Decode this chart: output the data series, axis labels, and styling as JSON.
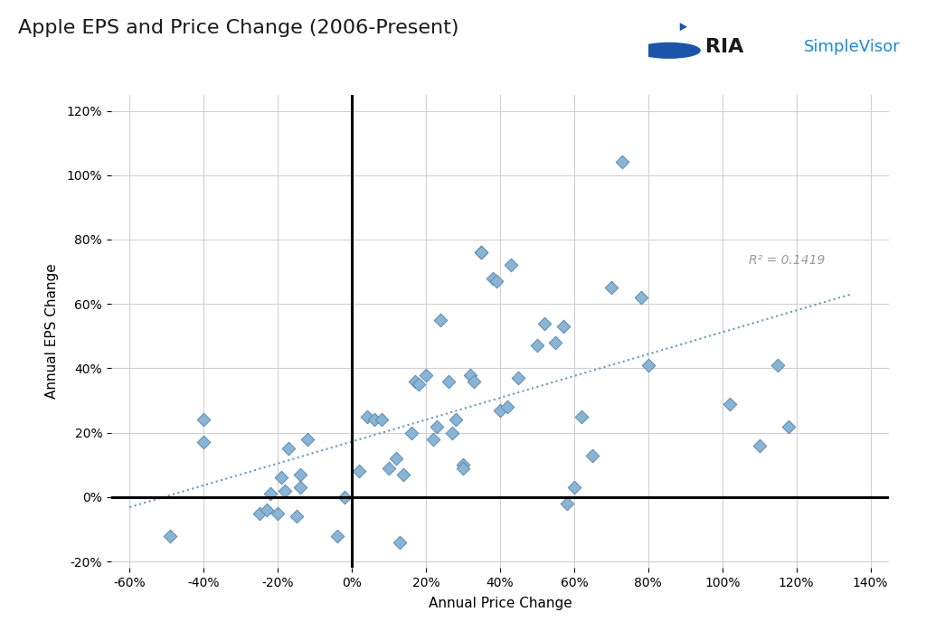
{
  "title": "Apple EPS and Price Change (2006-Present)",
  "xlabel": "Annual Price Change",
  "ylabel": "Annual EPS Change",
  "r_squared": "R² = 0.1419",
  "scatter_color": "#8ab4d4",
  "scatter_edgecolor": "#5a8ab0",
  "trendline_color": "#6699bb",
  "background_color": "#ffffff",
  "grid_color": "#d0d0d0",
  "data_x": [
    -0.49,
    -0.4,
    -0.4,
    -0.25,
    -0.23,
    -0.22,
    -0.2,
    -0.19,
    -0.18,
    -0.17,
    -0.15,
    -0.14,
    -0.14,
    -0.12,
    -0.04,
    -0.02,
    0.02,
    0.04,
    0.06,
    0.08,
    0.1,
    0.12,
    0.13,
    0.14,
    0.16,
    0.17,
    0.18,
    0.2,
    0.22,
    0.23,
    0.24,
    0.26,
    0.27,
    0.28,
    0.3,
    0.3,
    0.32,
    0.33,
    0.35,
    0.35,
    0.38,
    0.39,
    0.4,
    0.42,
    0.43,
    0.45,
    0.5,
    0.52,
    0.55,
    0.57,
    0.58,
    0.6,
    0.62,
    0.65,
    0.7,
    0.73,
    0.78,
    0.8,
    1.02,
    1.1,
    1.15,
    1.18
  ],
  "data_y": [
    -0.12,
    0.17,
    0.24,
    -0.05,
    -0.04,
    0.01,
    -0.05,
    0.06,
    0.02,
    0.15,
    -0.06,
    0.03,
    0.07,
    0.18,
    -0.12,
    0.0,
    0.08,
    0.25,
    0.24,
    0.24,
    0.09,
    0.12,
    -0.14,
    0.07,
    0.2,
    0.36,
    0.35,
    0.38,
    0.18,
    0.22,
    0.55,
    0.36,
    0.2,
    0.24,
    0.1,
    0.09,
    0.38,
    0.36,
    0.76,
    0.76,
    0.68,
    0.67,
    0.27,
    0.28,
    0.72,
    0.37,
    0.47,
    0.54,
    0.48,
    0.53,
    -0.02,
    0.03,
    0.25,
    0.13,
    0.65,
    1.04,
    0.62,
    0.41,
    0.29,
    0.16,
    0.41,
    0.22
  ]
}
